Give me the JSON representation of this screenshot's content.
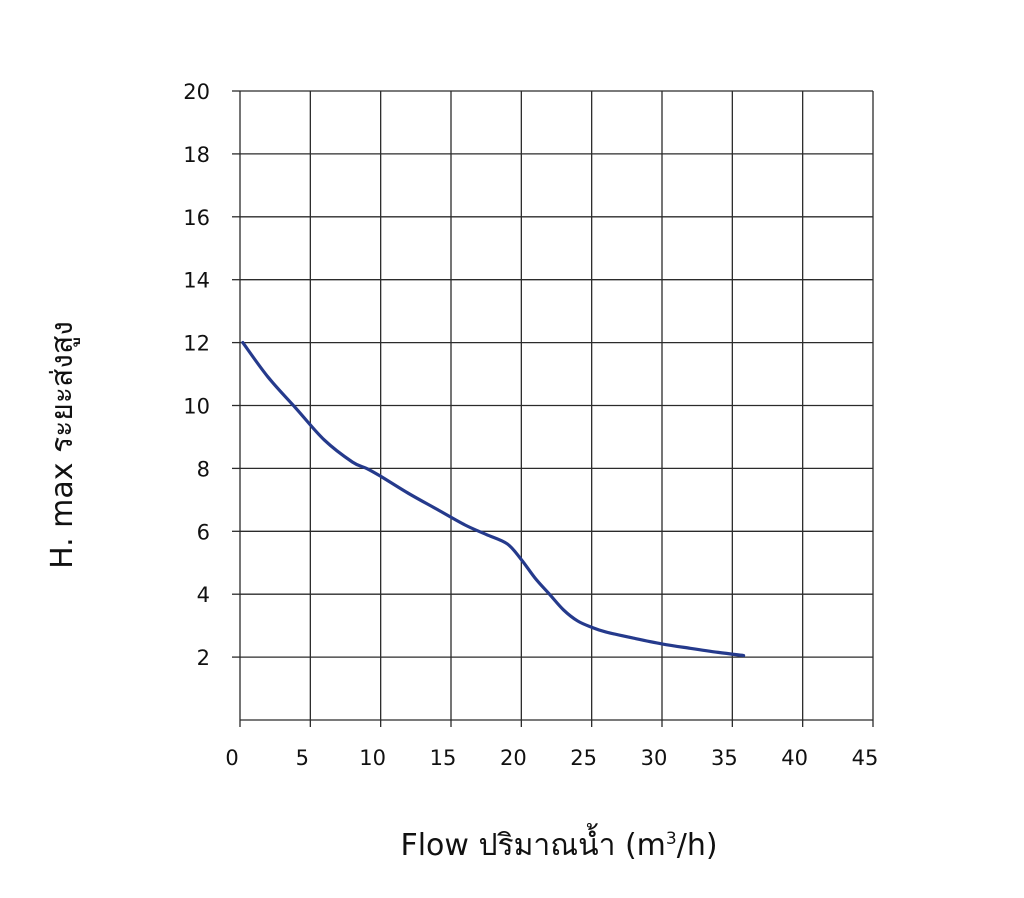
{
  "chart_data": {
    "type": "line",
    "xlabel": {
      "prefix": "Flow  ปริมาณน้ำ (m",
      "superscript": "3",
      "suffix": "/h)"
    },
    "ylabel": "H. max  ระยะส่งสูง",
    "xlim": [
      0,
      45
    ],
    "ylim": [
      0,
      20
    ],
    "x_ticks": [
      0,
      5,
      10,
      15,
      20,
      25,
      30,
      35,
      40,
      45
    ],
    "y_ticks": [
      2,
      4,
      6,
      8,
      10,
      12,
      14,
      16,
      18,
      20
    ],
    "grid": true,
    "series": [
      {
        "color": "#253a8c",
        "x": [
          0.2,
          2,
          4,
          6,
          8,
          9,
          10,
          12,
          14,
          16,
          17.5,
          19,
          20,
          21,
          22,
          23,
          24,
          25,
          26,
          28,
          30,
          32,
          34,
          35.8
        ],
        "y": [
          12.0,
          10.9,
          9.9,
          8.9,
          8.2,
          8.0,
          7.75,
          7.2,
          6.7,
          6.2,
          5.9,
          5.6,
          5.1,
          4.5,
          4.0,
          3.5,
          3.15,
          2.95,
          2.8,
          2.6,
          2.42,
          2.28,
          2.15,
          2.05
        ]
      }
    ]
  }
}
